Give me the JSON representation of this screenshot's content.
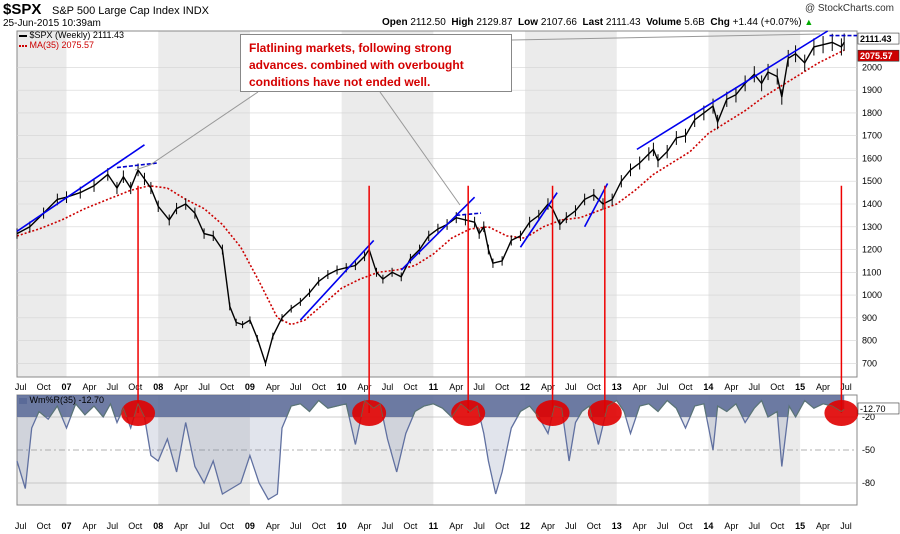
{
  "header": {
    "symbol": "$SPX",
    "description": "S&P 500 Large Cap Index",
    "exchange": "INDX",
    "timestamp": "25-Jun-2015 10:39am",
    "credit": "@ StockCharts.com",
    "open_label": "Open",
    "open": "2112.50",
    "high_label": "High",
    "high": "2129.87",
    "low_label": "Low",
    "low": "2107.66",
    "last_label": "Last",
    "last": "2111.43",
    "volume_label": "Volume",
    "volume": "5.6B",
    "chg_label": "Chg",
    "chg": "+1.44 (+0.07%)",
    "chg_arrow": "▲"
  },
  "callout": {
    "text": "Flatlining markets, following strong advances. combined with overbought conditions have not ended well."
  },
  "colors": {
    "price": "#000000",
    "ma": "#cc0000",
    "trendline": "#0000ee",
    "flat_line": "#0000cc",
    "signal_line": "#ee0000",
    "oscillator": "#6070a0",
    "oscillator_fill": "#5a6a98",
    "highlight": "#e00000",
    "band_gray": "#ebebeb"
  },
  "chart_data": [
    {
      "type": "line",
      "title": "$SPX (Weekly) 2111.43",
      "legend": [
        {
          "label": "$SPX (Weekly) 2111.43",
          "color": "#000000"
        },
        {
          "label": "MA(35) 2075.57",
          "color": "#cc0000"
        }
      ],
      "last_value_labels": [
        "2111.43",
        "2075.57"
      ],
      "ylim": [
        640,
        2160
      ],
      "y_ticks": [
        700,
        800,
        900,
        1000,
        1100,
        1200,
        1300,
        1400,
        1500,
        1600,
        1700,
        1800,
        1900,
        2000
      ],
      "x_range_years": [
        2006.46,
        2015.62
      ],
      "x_tick_labels": [
        "Jul",
        "Oct",
        "07",
        "Apr",
        "Jul",
        "Oct",
        "08",
        "Apr",
        "Jul",
        "Oct",
        "09",
        "Apr",
        "Jul",
        "Oct",
        "10",
        "Apr",
        "Jul",
        "Oct",
        "11",
        "Apr",
        "Jul",
        "Oct",
        "12",
        "Apr",
        "Jul",
        "Oct",
        "13",
        "Apr",
        "Jul",
        "Oct",
        "14",
        "Apr",
        "Jul",
        "Oct",
        "15",
        "Apr",
        "Jul"
      ],
      "series": [
        {
          "name": "$SPX (Weekly)",
          "x": [
            2006.46,
            2006.6,
            2006.75,
            2006.9,
            2007.0,
            2007.15,
            2007.3,
            2007.45,
            2007.55,
            2007.62,
            2007.7,
            2007.78,
            2007.85,
            2007.92,
            2008.0,
            2008.12,
            2008.2,
            2008.3,
            2008.4,
            2008.5,
            2008.6,
            2008.7,
            2008.78,
            2008.85,
            2008.92,
            2009.0,
            2009.08,
            2009.17,
            2009.25,
            2009.35,
            2009.45,
            2009.55,
            2009.65,
            2009.75,
            2009.85,
            2009.95,
            2010.05,
            2010.15,
            2010.25,
            2010.3,
            2010.38,
            2010.45,
            2010.55,
            2010.65,
            2010.75,
            2010.85,
            2010.95,
            2011.05,
            2011.15,
            2011.25,
            2011.35,
            2011.45,
            2011.5,
            2011.55,
            2011.6,
            2011.65,
            2011.75,
            2011.85,
            2011.95,
            2012.05,
            2012.15,
            2012.25,
            2012.3,
            2012.38,
            2012.45,
            2012.55,
            2012.65,
            2012.75,
            2012.85,
            2012.95,
            2013.05,
            2013.15,
            2013.25,
            2013.35,
            2013.4,
            2013.45,
            2013.55,
            2013.65,
            2013.75,
            2013.85,
            2013.95,
            2014.05,
            2014.1,
            2014.2,
            2014.3,
            2014.4,
            2014.5,
            2014.58,
            2014.65,
            2014.75,
            2014.8,
            2014.87,
            2014.95,
            2015.05,
            2015.15,
            2015.25,
            2015.35,
            2015.45,
            2015.48
          ],
          "values": [
            1270,
            1300,
            1360,
            1420,
            1430,
            1450,
            1480,
            1530,
            1470,
            1520,
            1470,
            1550,
            1510,
            1470,
            1390,
            1330,
            1380,
            1400,
            1360,
            1270,
            1260,
            1200,
            950,
            880,
            870,
            890,
            810,
            700,
            820,
            900,
            940,
            970,
            1010,
            1060,
            1090,
            1110,
            1120,
            1130,
            1170,
            1200,
            1100,
            1070,
            1100,
            1080,
            1160,
            1200,
            1260,
            1290,
            1310,
            1340,
            1330,
            1320,
            1270,
            1300,
            1200,
            1140,
            1150,
            1240,
            1260,
            1320,
            1350,
            1400,
            1380,
            1310,
            1340,
            1370,
            1420,
            1440,
            1400,
            1420,
            1500,
            1550,
            1580,
            1620,
            1640,
            1590,
            1630,
            1690,
            1700,
            1770,
            1800,
            1830,
            1760,
            1860,
            1880,
            1930,
            1970,
            1930,
            1980,
            1960,
            1870,
            2040,
            2060,
            2020,
            2090,
            2100,
            2110,
            2090,
            2111
          ]
        },
        {
          "name": "MA(35)",
          "x": [
            2006.46,
            2006.7,
            2006.95,
            2007.2,
            2007.45,
            2007.7,
            2007.9,
            2008.1,
            2008.3,
            2008.5,
            2008.7,
            2008.9,
            2009.1,
            2009.3,
            2009.45,
            2009.6,
            2009.8,
            2010.0,
            2010.2,
            2010.4,
            2010.6,
            2010.8,
            2011.0,
            2011.2,
            2011.4,
            2011.6,
            2011.8,
            2012.0,
            2012.2,
            2012.4,
            2012.6,
            2012.8,
            2013.0,
            2013.2,
            2013.4,
            2013.6,
            2013.8,
            2014.0,
            2014.2,
            2014.4,
            2014.6,
            2014.8,
            2015.0,
            2015.2,
            2015.48
          ],
          "values": [
            1260,
            1290,
            1330,
            1380,
            1420,
            1460,
            1480,
            1470,
            1420,
            1380,
            1310,
            1210,
            1060,
            900,
            870,
            890,
            960,
            1030,
            1070,
            1100,
            1110,
            1130,
            1180,
            1250,
            1290,
            1300,
            1260,
            1250,
            1300,
            1330,
            1340,
            1370,
            1400,
            1460,
            1530,
            1580,
            1630,
            1710,
            1760,
            1810,
            1870,
            1920,
            1970,
            2020,
            2076
          ]
        }
      ],
      "trendlines": [
        {
          "start": [
            2006.46,
            1280
          ],
          "end": [
            2007.85,
            1660
          ]
        },
        {
          "start": [
            2009.55,
            890
          ],
          "end": [
            2010.35,
            1240
          ]
        },
        {
          "start": [
            2010.65,
            1110
          ],
          "end": [
            2011.45,
            1430
          ]
        },
        {
          "start": [
            2011.95,
            1210
          ],
          "end": [
            2012.35,
            1450
          ]
        },
        {
          "start": [
            2012.65,
            1300
          ],
          "end": [
            2012.9,
            1490
          ]
        },
        {
          "start": [
            2013.22,
            1640
          ],
          "end": [
            2015.3,
            2160
          ]
        }
      ],
      "flat_lines": [
        {
          "start": [
            2007.55,
            1560
          ],
          "end": [
            2007.99,
            1580
          ]
        },
        {
          "start": [
            2011.25,
            1350
          ],
          "end": [
            2011.52,
            1360
          ]
        },
        {
          "start": [
            2015.32,
            2140
          ],
          "end": [
            2015.62,
            2140
          ]
        }
      ],
      "signal_dates": [
        2007.78,
        2010.3,
        2011.38,
        2012.3,
        2012.87,
        2015.45
      ]
    },
    {
      "type": "area",
      "title": "Wm%R(35) -12.70",
      "legend": [
        {
          "label": "Wm%R(35) -12.70",
          "color": "#6070a0"
        }
      ],
      "last_value_label": "-12.70",
      "ylim": [
        -100,
        0
      ],
      "y_ticks": [
        -20,
        -50,
        -80
      ],
      "x": [
        2006.46,
        2006.55,
        2006.62,
        2006.7,
        2006.8,
        2006.9,
        2007.0,
        2007.1,
        2007.2,
        2007.3,
        2007.4,
        2007.48,
        2007.55,
        2007.62,
        2007.7,
        2007.78,
        2007.85,
        2007.92,
        2008.0,
        2008.1,
        2008.2,
        2008.3,
        2008.4,
        2008.5,
        2008.6,
        2008.7,
        2008.8,
        2008.9,
        2009.0,
        2009.1,
        2009.2,
        2009.3,
        2009.35,
        2009.45,
        2009.55,
        2009.65,
        2009.75,
        2009.85,
        2009.95,
        2010.05,
        2010.15,
        2010.25,
        2010.35,
        2010.42,
        2010.5,
        2010.6,
        2010.7,
        2010.8,
        2010.9,
        2011.0,
        2011.1,
        2011.2,
        2011.3,
        2011.4,
        2011.48,
        2011.55,
        2011.6,
        2011.68,
        2011.75,
        2011.85,
        2011.95,
        2012.05,
        2012.15,
        2012.25,
        2012.32,
        2012.4,
        2012.48,
        2012.55,
        2012.62,
        2012.7,
        2012.8,
        2012.9,
        2013.0,
        2013.08,
        2013.15,
        2013.25,
        2013.35,
        2013.45,
        2013.55,
        2013.65,
        2013.75,
        2013.85,
        2013.95,
        2014.05,
        2014.1,
        2014.2,
        2014.3,
        2014.4,
        2014.5,
        2014.58,
        2014.65,
        2014.75,
        2014.8,
        2014.88,
        2014.95,
        2015.05,
        2015.15,
        2015.25,
        2015.35,
        2015.45,
        2015.48
      ],
      "values": [
        -60,
        -85,
        -30,
        -15,
        -22,
        -10,
        -30,
        -8,
        -18,
        -10,
        -20,
        -8,
        -25,
        -12,
        -30,
        -8,
        -20,
        -55,
        -60,
        -40,
        -70,
        -25,
        -65,
        -80,
        -60,
        -90,
        -85,
        -80,
        -55,
        -80,
        -95,
        -90,
        -30,
        -10,
        -8,
        -15,
        -5,
        -12,
        -10,
        -8,
        -45,
        -5,
        -12,
        -8,
        -40,
        -70,
        -35,
        -15,
        -10,
        -8,
        -12,
        -20,
        -8,
        -15,
        -10,
        -35,
        -60,
        -90,
        -70,
        -30,
        -15,
        -10,
        -20,
        -35,
        -10,
        -12,
        -60,
        -25,
        -15,
        -10,
        -45,
        -10,
        -5,
        -15,
        -35,
        -10,
        -8,
        -15,
        -5,
        -12,
        -30,
        -10,
        -8,
        -50,
        -10,
        -15,
        -8,
        -25,
        -12,
        -5,
        -20,
        -15,
        -65,
        -10,
        -20,
        -5,
        -12,
        -8,
        -10,
        -15,
        -13
      ]
    }
  ]
}
